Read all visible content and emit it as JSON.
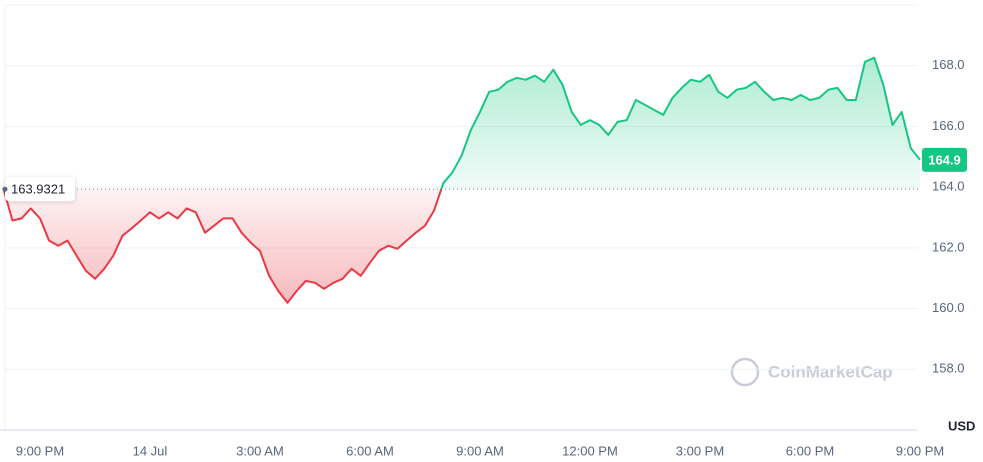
{
  "chart_data": {
    "type": "line",
    "categories": [
      null,
      null,
      null,
      null,
      "9:00 PM",
      null,
      null,
      null,
      null,
      null,
      null,
      null,
      null,
      null,
      null,
      null,
      "14 Jul",
      null,
      null,
      null,
      null,
      null,
      null,
      null,
      null,
      null,
      null,
      null,
      "3:00 AM",
      null,
      null,
      null,
      null,
      null,
      null,
      null,
      null,
      null,
      null,
      null,
      "6:00 AM",
      null,
      null,
      null,
      null,
      null,
      null,
      null,
      null,
      null,
      null,
      null,
      "9:00 AM",
      null,
      null,
      null,
      null,
      null,
      null,
      null,
      null,
      null,
      null,
      null,
      "12:00 PM",
      null,
      null,
      null,
      null,
      null,
      null,
      null,
      null,
      null,
      null,
      null,
      "3:00 PM",
      null,
      null,
      null,
      null,
      null,
      null,
      null,
      null,
      null,
      null,
      null,
      "6:00 PM",
      null,
      null,
      null,
      null,
      null,
      null,
      null,
      null,
      null,
      null,
      null,
      "9:00 PM"
    ],
    "values": [
      163.96,
      162.9,
      162.97,
      163.3,
      162.97,
      162.24,
      162.07,
      162.24,
      161.74,
      161.25,
      160.98,
      161.3,
      161.74,
      162.4,
      162.64,
      162.9,
      163.17,
      162.97,
      163.17,
      162.97,
      163.3,
      163.17,
      162.5,
      162.73,
      162.97,
      162.97,
      162.5,
      162.17,
      161.9,
      161.08,
      160.58,
      160.19,
      160.58,
      160.91,
      160.85,
      160.65,
      160.85,
      160.98,
      161.31,
      161.08,
      161.51,
      161.91,
      162.07,
      161.97,
      162.24,
      162.5,
      162.73,
      163.23,
      164.13,
      164.49,
      165.05,
      165.88,
      166.48,
      167.14,
      167.21,
      167.47,
      167.6,
      167.54,
      167.67,
      167.47,
      167.87,
      167.37,
      166.48,
      166.05,
      166.21,
      166.05,
      165.72,
      166.15,
      166.21,
      166.87,
      166.71,
      166.54,
      166.38,
      166.94,
      167.27,
      167.54,
      167.47,
      167.7,
      167.14,
      166.94,
      167.21,
      167.27,
      167.47,
      167.14,
      166.87,
      166.94,
      166.87,
      167.04,
      166.87,
      166.94,
      167.21,
      167.27,
      166.87,
      166.87,
      168.13,
      168.26,
      167.37,
      166.05,
      166.48,
      165.28,
      164.9
    ],
    "baseline": 163.9321,
    "current_price": 164.9,
    "up_color": "#16c784",
    "down_color": "#ea3943",
    "ylim": [
      156,
      170
    ],
    "yticks": [
      {
        "value": 158,
        "label": "158.0"
      },
      {
        "value": 160,
        "label": "160.0"
      },
      {
        "value": 162,
        "label": "162.0"
      },
      {
        "value": 164,
        "label": "164.0"
      },
      {
        "value": 166,
        "label": "166.0"
      },
      {
        "value": 168,
        "label": "168.0"
      }
    ],
    "y_unit": "USD",
    "watermark": "CoinMarketCap",
    "grid": true
  }
}
